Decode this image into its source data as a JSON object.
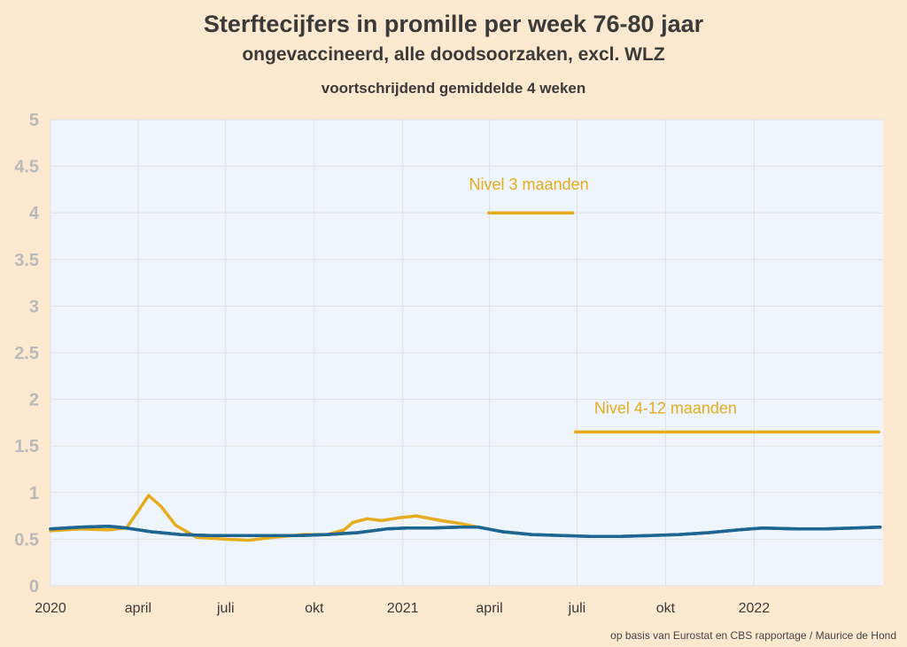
{
  "chart_data": {
    "type": "line",
    "title": "Sterftecijfers in promille per week 76-80 jaar",
    "subtitle": "ongevaccineerd, alle doodsoorzaken, excl. WLZ",
    "subtitle2": "voortschrijdend gemiddelde 4 weken",
    "ylim": [
      0,
      5
    ],
    "y_ticks": [
      "0",
      "0.5",
      "1",
      "1.5",
      "2",
      "2.5",
      "3",
      "3.5",
      "4",
      "4.5",
      "5"
    ],
    "x_ticks": [
      {
        "label": "2020",
        "date": "2020-01-01"
      },
      {
        "label": "april",
        "date": "2020-04-01"
      },
      {
        "label": "juli",
        "date": "2020-07-01"
      },
      {
        "label": "okt",
        "date": "2020-10-01"
      },
      {
        "label": "2021",
        "date": "2021-01-01"
      },
      {
        "label": "april",
        "date": "2021-04-01"
      },
      {
        "label": "juli",
        "date": "2021-07-01"
      },
      {
        "label": "okt",
        "date": "2021-10-01"
      },
      {
        "label": "2022",
        "date": "2022-01-01"
      }
    ],
    "xlim": [
      "2020-01-01",
      "2022-05-15"
    ],
    "grid": true,
    "colors": {
      "blue": "#1f6591",
      "gold": "#e6ac1e",
      "plot_bg": "#eef5fd",
      "page_bg": "#fde9cf",
      "grid": "#e1e1e1"
    },
    "series": [
      {
        "name": "",
        "color": "#1f6591",
        "points": [
          [
            "2020-01-01",
            0.61
          ],
          [
            "2020-02-01",
            0.63
          ],
          [
            "2020-03-01",
            0.64
          ],
          [
            "2020-03-20",
            0.62
          ],
          [
            "2020-04-15",
            0.58
          ],
          [
            "2020-05-15",
            0.55
          ],
          [
            "2020-06-15",
            0.54
          ],
          [
            "2020-07-15",
            0.54
          ],
          [
            "2020-08-15",
            0.54
          ],
          [
            "2020-09-15",
            0.54
          ],
          [
            "2020-10-15",
            0.55
          ],
          [
            "2020-11-15",
            0.57
          ],
          [
            "2020-12-15",
            0.61
          ],
          [
            "2021-01-05",
            0.62
          ],
          [
            "2021-02-01",
            0.62
          ],
          [
            "2021-03-01",
            0.63
          ],
          [
            "2021-03-20",
            0.63
          ],
          [
            "2021-04-15",
            0.58
          ],
          [
            "2021-05-15",
            0.55
          ],
          [
            "2021-06-15",
            0.54
          ],
          [
            "2021-07-15",
            0.53
          ],
          [
            "2021-08-15",
            0.53
          ],
          [
            "2021-09-15",
            0.54
          ],
          [
            "2021-10-15",
            0.55
          ],
          [
            "2021-11-15",
            0.57
          ],
          [
            "2021-12-15",
            0.6
          ],
          [
            "2022-01-10",
            0.62
          ],
          [
            "2022-02-15",
            0.61
          ],
          [
            "2022-03-15",
            0.61
          ],
          [
            "2022-04-15",
            0.62
          ],
          [
            "2022-05-12",
            0.63
          ]
        ]
      },
      {
        "name": "",
        "color": "#e6ac1e",
        "points": [
          [
            "2020-01-01",
            0.59
          ],
          [
            "2020-02-01",
            0.61
          ],
          [
            "2020-03-01",
            0.6
          ],
          [
            "2020-03-20",
            0.62
          ],
          [
            "2020-04-01",
            0.8
          ],
          [
            "2020-04-12",
            0.97
          ],
          [
            "2020-04-25",
            0.85
          ],
          [
            "2020-05-10",
            0.65
          ],
          [
            "2020-06-01",
            0.52
          ],
          [
            "2020-07-01",
            0.5
          ],
          [
            "2020-07-25",
            0.49
          ],
          [
            "2020-08-20",
            0.52
          ],
          [
            "2020-09-20",
            0.55
          ],
          [
            "2020-10-15",
            0.55
          ],
          [
            "2020-11-01",
            0.6
          ],
          [
            "2020-11-10",
            0.68
          ],
          [
            "2020-11-25",
            0.72
          ],
          [
            "2020-12-10",
            0.7
          ],
          [
            "2020-12-28",
            0.73
          ],
          [
            "2021-01-15",
            0.75
          ],
          [
            "2021-02-10",
            0.7
          ],
          [
            "2021-03-01",
            0.67
          ],
          [
            "2021-03-20",
            0.63
          ]
        ]
      }
    ],
    "annotations": [
      {
        "text": "Nivel 3 maanden",
        "value": 4.0,
        "from": "2021-03-30",
        "to": "2021-06-28",
        "label_at": "2021-05-12",
        "label_value": 4.25
      },
      {
        "text": "Nivel 4-12 maanden",
        "value": 1.65,
        "from": "2021-06-28",
        "to": "2022-05-12",
        "label_at": "2021-10-01",
        "label_value": 1.85
      }
    ],
    "source": "op basis van Eurostat en CBS rapportage / Maurice de Hond"
  }
}
